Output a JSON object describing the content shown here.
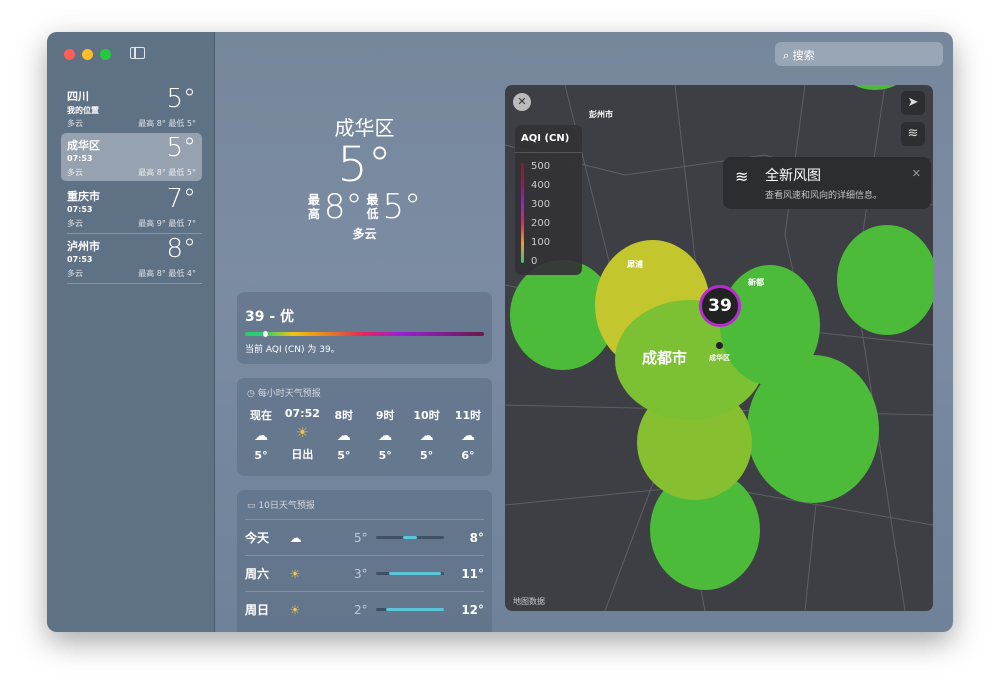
{
  "window": {
    "search_placeholder": "搜索"
  },
  "sidebar": {
    "locations": [
      {
        "name": "四川",
        "sub": "我的位置",
        "temp": "5°",
        "cond": "多云",
        "hilo": "最高 8° 最低 5°"
      },
      {
        "name": "成华区",
        "sub": "07:53",
        "temp": "5°",
        "cond": "多云",
        "hilo": "最高 8° 最低 5°"
      },
      {
        "name": "重庆市",
        "sub": "07:53",
        "temp": "7°",
        "cond": "多云",
        "hilo": "最高 9° 最低 7°"
      },
      {
        "name": "泸州市",
        "sub": "07:53",
        "temp": "8°",
        "cond": "多云",
        "hilo": "最高 8° 最低 4°"
      }
    ]
  },
  "current": {
    "city": "成华区",
    "temp": "5°",
    "hi_label": "最高",
    "hi": "8°",
    "lo_label": "最低",
    "lo": "5°",
    "cond": "多云"
  },
  "aqi": {
    "title": "39 - 优",
    "desc": "当前 AQI (CN) 为 39。",
    "value": 39
  },
  "hourly": {
    "title": "每小时天气预报",
    "items": [
      {
        "time": "现在",
        "icon": "cloud",
        "temp": "5°"
      },
      {
        "time": "07:52",
        "icon": "sunrise",
        "temp": "日出"
      },
      {
        "time": "8时",
        "icon": "cloud",
        "temp": "5°"
      },
      {
        "time": "9时",
        "icon": "cloud",
        "temp": "5°"
      },
      {
        "time": "10时",
        "icon": "cloud",
        "temp": "5°"
      },
      {
        "time": "11时",
        "icon": "cloud",
        "temp": "6°"
      }
    ]
  },
  "daily": {
    "title": "10日天气预报",
    "items": [
      {
        "day": "今天",
        "icon": "cloud",
        "lo": "5°",
        "hi": "8°"
      },
      {
        "day": "周六",
        "icon": "sun",
        "lo": "3°",
        "hi": "11°"
      },
      {
        "day": "周日",
        "icon": "sun",
        "lo": "2°",
        "hi": "12°"
      }
    ]
  },
  "map": {
    "legend_title": "AQI (CN)",
    "legend_values": [
      "500",
      "400",
      "300",
      "200",
      "100",
      "0"
    ],
    "labels": {
      "pengzhou": "彭州市",
      "xipu": "犀浦",
      "xindu": "新都",
      "chengdu": "成都市",
      "chenghua": "成华区",
      "credit": "地图数据"
    },
    "marker_value": "39",
    "tip": {
      "title": "全新风图",
      "desc": "查看风速和风向的详细信息。"
    },
    "colors": {
      "good": "#4cbb3a",
      "moderate": "#c3c62c"
    }
  }
}
